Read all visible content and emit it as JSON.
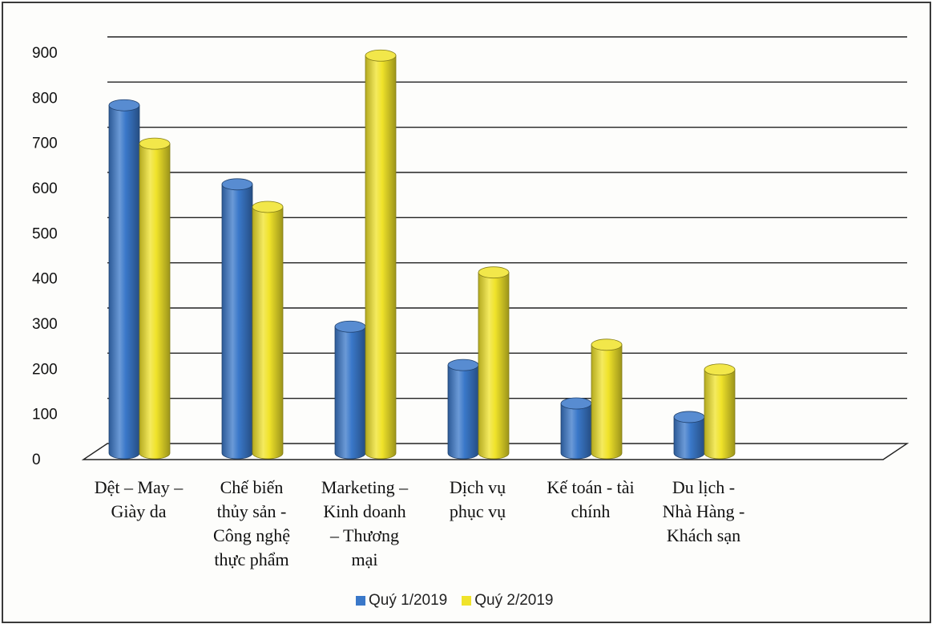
{
  "chart_data": {
    "type": "bar",
    "categories": [
      [
        "Dệt – May –",
        "Giày da"
      ],
      [
        "Chế biến",
        "thủy sản -",
        "Công nghệ",
        "thực phẩm"
      ],
      [
        "Marketing –",
        "Kinh doanh",
        "– Thương",
        "mại"
      ],
      [
        "Dịch vụ",
        "phục vụ"
      ],
      [
        "Kế toán - tài",
        "chính"
      ],
      [
        "Du lịch -",
        "Nhà Hàng -",
        "Khách sạn"
      ]
    ],
    "series": [
      {
        "name": "Quý 1/2019",
        "color": "#3a78c9",
        "values": [
          770,
          595,
          280,
          195,
          110,
          80
        ]
      },
      {
        "name": "Quý 2/2019",
        "color": "#f0e32a",
        "values": [
          685,
          545,
          880,
          400,
          240,
          185
        ]
      }
    ],
    "ylim": [
      0,
      900
    ],
    "yticks": [
      0,
      100,
      200,
      300,
      400,
      500,
      600,
      700,
      800,
      900
    ],
    "grid": true,
    "legend_position": "bottom",
    "style": "3d-cylinder"
  }
}
